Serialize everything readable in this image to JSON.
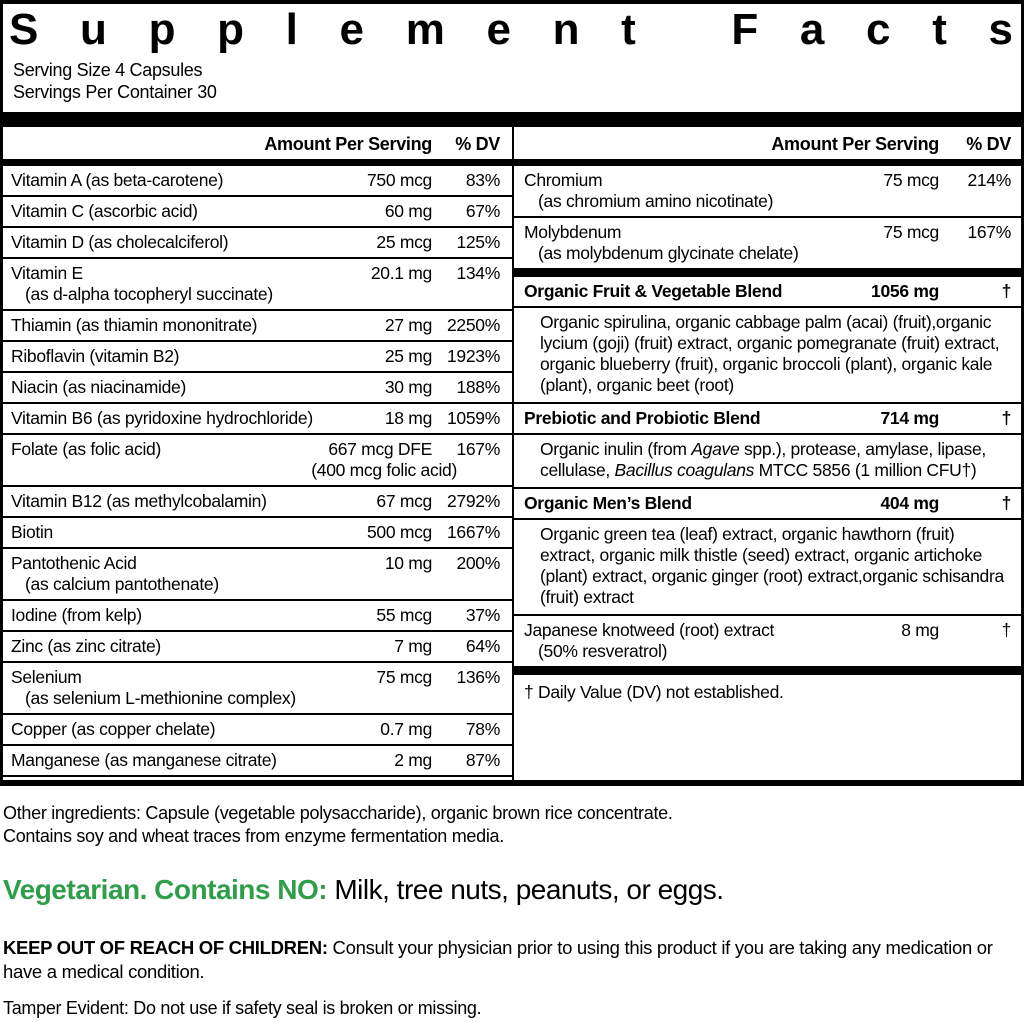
{
  "title": "Supplement Facts",
  "serving_size": "Serving Size 4 Capsules",
  "servings_per_container": "Servings Per Container 30",
  "header": {
    "amount": "Amount Per Serving",
    "dv": "% DV"
  },
  "left_rows": [
    {
      "name": "Vitamin A (as beta-carotene)",
      "amount": "750 mcg",
      "dv": "83%"
    },
    {
      "name": "Vitamin C (ascorbic acid)",
      "amount": "60 mg",
      "dv": "67%"
    },
    {
      "name": "Vitamin D (as cholecalciferol)",
      "amount": "25 mcg",
      "dv": "125%"
    },
    {
      "name": "Vitamin E",
      "sub": "(as d-alpha tocopheryl succinate)",
      "amount": "20.1 mg",
      "dv": "134%"
    },
    {
      "name": "Thiamin (as thiamin mononitrate)",
      "amount": "27 mg",
      "dv": "2250%"
    },
    {
      "name": "Riboflavin (vitamin B2)",
      "amount": "25 mg",
      "dv": "1923%"
    },
    {
      "name": "Niacin (as niacinamide)",
      "amount": "30 mg",
      "dv": "188%"
    },
    {
      "name": "Vitamin B6 (as pyridoxine hydrochloride)",
      "amount": "18 mg",
      "dv": "1059%"
    },
    {
      "name": "Folate (as folic acid)",
      "amount": "667 mcg DFE",
      "amount2": "(400 mcg folic acid)",
      "dv": "167%"
    },
    {
      "name": "Vitamin B12 (as methylcobalamin)",
      "amount": "67 mcg",
      "dv": "2792%"
    },
    {
      "name": "Biotin",
      "amount": "500 mcg",
      "dv": "1667%"
    },
    {
      "name": "Pantothenic Acid",
      "sub": "(as calcium pantothenate)",
      "amount": "10 mg",
      "dv": "200%"
    },
    {
      "name": "Iodine (from kelp)",
      "amount": "55 mcg",
      "dv": "37%"
    },
    {
      "name": "Zinc (as zinc citrate)",
      "amount": "7 mg",
      "dv": "64%"
    },
    {
      "name": "Selenium",
      "sub": "(as selenium L-methionine complex)",
      "amount": "75 mcg",
      "dv": "136%"
    },
    {
      "name": "Copper (as copper chelate)",
      "amount": "0.7 mg",
      "dv": "78%"
    },
    {
      "name": "Manganese (as manganese citrate)",
      "amount": "2 mg",
      "dv": "87%"
    }
  ],
  "right_rows": [
    {
      "name": "Chromium",
      "sub": "(as chromium amino nicotinate)",
      "amount": "75 mcg",
      "dv": "214%"
    },
    {
      "name": "Molybdenum",
      "sub": "(as molybdenum glycinate chelate)",
      "amount": "75 mcg",
      "dv": "167%"
    }
  ],
  "blends": [
    {
      "name": "Organic Fruit & Vegetable Blend",
      "amount": "1056 mg",
      "dv": "†",
      "desc": "Organic spirulina, organic cabbage palm (acai) (fruit),organic lycium (goji) (fruit) extract, organic pomegranate (fruit) extract, organic blueberry (fruit), organic broccoli (plant), organic kale (plant), organic beet (root)"
    },
    {
      "name": "Prebiotic and Probiotic Blend",
      "amount": "714 mg",
      "dv": "†",
      "desc_p1": "Organic inulin (from ",
      "desc_i1": "Agave",
      "desc_p2": " spp.), protease, amylase, lipase, cellulase, ",
      "desc_i2": "Bacillus coagulans",
      "desc_p3": " MTCC 5856 (1 million CFU†)"
    },
    {
      "name": "Organic Men’s Blend",
      "amount": "404 mg",
      "dv": "†",
      "desc": "Organic green tea (leaf) extract, organic hawthorn (fruit) extract, organic milk thistle (seed) extract, organic artichoke (plant) extract, organic ginger (root) extract,organic schisandra (fruit) extract"
    }
  ],
  "knotweed": {
    "name": "Japanese knotweed (root) extract",
    "sub": "(50% resveratrol)",
    "amount": "8 mg",
    "dv": "†"
  },
  "footnote": "† Daily Value (DV) not established.",
  "other_ingredients": "Other ingredients: Capsule (vegetable polysaccharide), organic brown rice concentrate.",
  "allergen_note": "Contains soy and wheat traces from enzyme fermentation media.",
  "vegetarian_label": "Vegetarian. Contains NO:",
  "vegetarian_text": " Milk, tree nuts, peanuts, or eggs.",
  "warning_label": "KEEP OUT OF REACH OF CHILDREN:",
  "warning_text": " Consult your physician prior to using this product if you are taking any medication or have a medical condition.",
  "tamper_note": "Tamper Evident: Do not use if safety seal is broken or missing.",
  "colors": {
    "accent_green": "#2e9e4a"
  }
}
